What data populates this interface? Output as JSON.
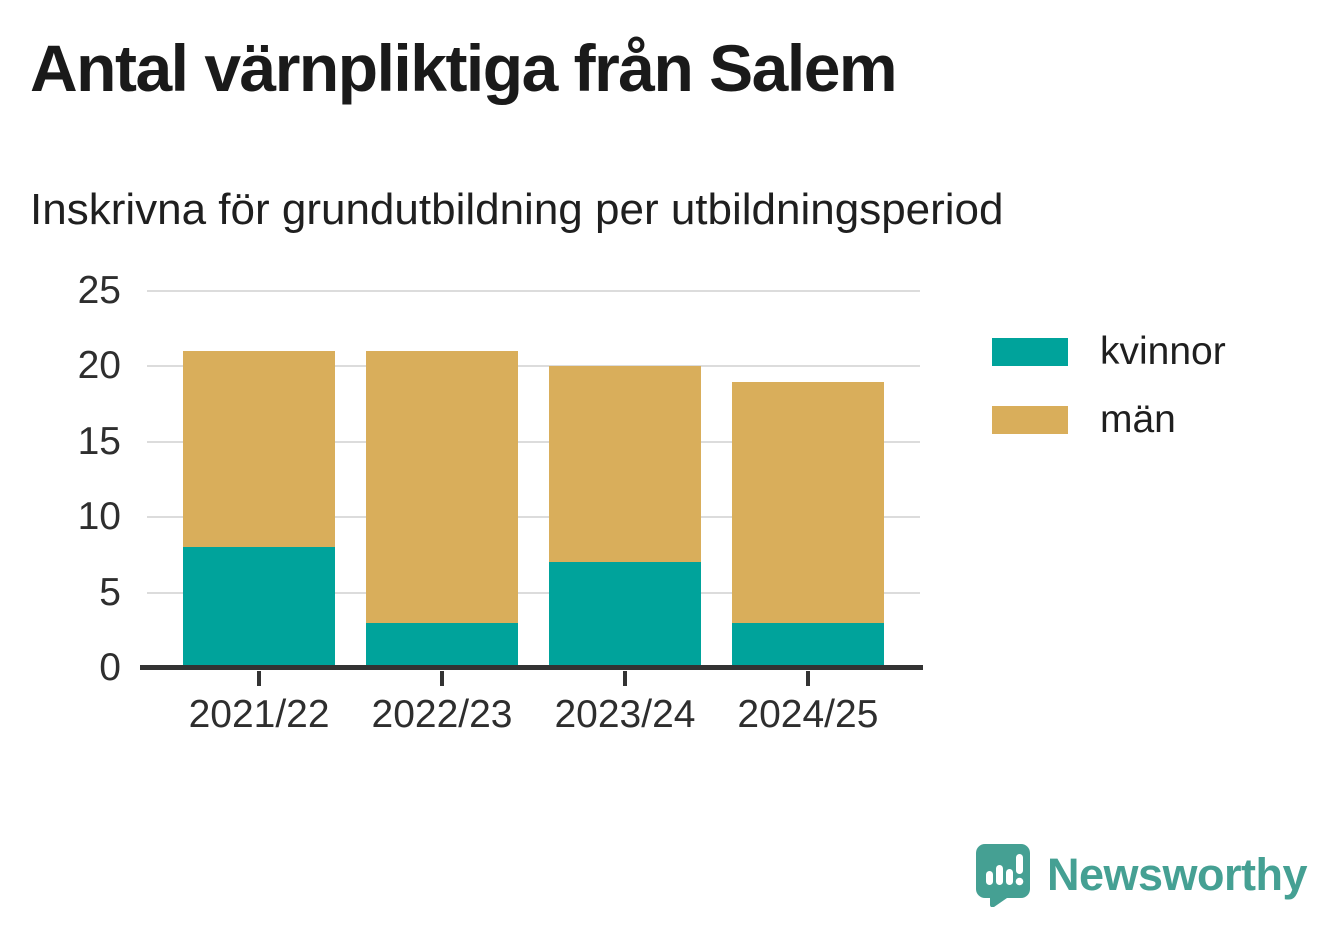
{
  "title": "Antal värnpliktiga från Salem",
  "subtitle": "Inskrivna för grundutbildning per utbildningsperiod",
  "chart_data": {
    "type": "bar",
    "stacked": true,
    "title": "Antal värnpliktiga från Salem",
    "subtitle": "Inskrivna för grundutbildning per utbildningsperiod",
    "categories": [
      "2021/22",
      "2022/23",
      "2023/24",
      "2024/25"
    ],
    "series": [
      {
        "name": "kvinnor",
        "color": "#00a39b",
        "values": [
          8,
          3,
          7,
          3
        ]
      },
      {
        "name": "män",
        "color": "#d9ae5b",
        "values": [
          13,
          18,
          13,
          16
        ]
      }
    ],
    "stack_totals": [
      21,
      21,
      20,
      19
    ],
    "xlabel": "",
    "ylabel": "",
    "ylim": [
      0,
      25
    ],
    "yticks": [
      0,
      5,
      10,
      15,
      20,
      25
    ],
    "grid": true,
    "legend_position": "right"
  },
  "branding": {
    "logo_text": "Newsworthy",
    "logo_color": "#45a093"
  },
  "colors": {
    "axis_line": "#333333",
    "grid_line": "#dcdcdc",
    "axis_text": "#2e2e2e"
  }
}
